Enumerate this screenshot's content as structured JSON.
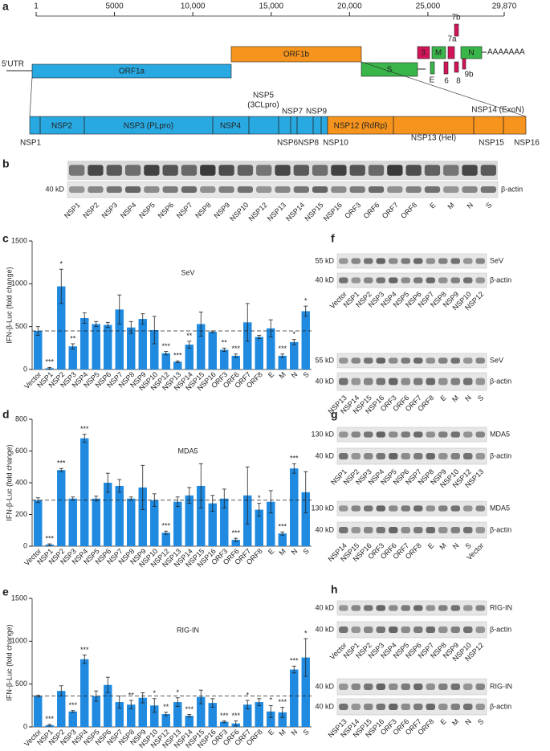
{
  "panel_labels": {
    "a": "a",
    "b": "b",
    "c": "c",
    "d": "d",
    "e": "e",
    "f": "f",
    "g": "g",
    "h": "h"
  },
  "genome": {
    "range": [
      1,
      29870
    ],
    "ticks": [
      1,
      5000,
      {
        "value": 10000,
        "label": "10,000"
      },
      {
        "value": 15000,
        "label": "15,000"
      },
      {
        "value": 20000,
        "label": "20,000"
      },
      {
        "value": 25000,
        "label": "25,000"
      },
      {
        "value": 29870,
        "label": "29,870"
      }
    ],
    "labels": {
      "utr": "5′UTR",
      "orf1a": "ORF1a",
      "orf1b": "ORF1b",
      "s": "S",
      "orf3": "3",
      "m": "M",
      "n": "N",
      "e": "E",
      "orf6": "6",
      "orf7a": "7a",
      "orf7b": "7b",
      "orf8": "8",
      "orf9b": "9b",
      "polya": "AAAAAAA"
    },
    "nsps": {
      "nsp1": "NSP1",
      "nsp2": "NSP2",
      "nsp3": "NSP3 (PLpro)",
      "nsp4": "NSP4",
      "nsp5": "NSP5",
      "nsp5_note": "(3CLpro)",
      "nsp6": "NSP6",
      "nsp7": "NSP7",
      "nsp8": "NSP8",
      "nsp9": "NSP9",
      "nsp10": "NSP10",
      "nsp12": "NSP12 (RdRp)",
      "nsp13": "NSP13 (Hel)",
      "nsp14": "NSP14 (ExoN)",
      "nsp15": "NSP15",
      "nsp16": "NSP16"
    }
  },
  "blots": {
    "b": {
      "rows": [
        {
          "size": "40 kD",
          "target": "β-actin"
        }
      ],
      "lanes": [
        "NSP1",
        "NSP2",
        "NSP3",
        "NSP4",
        "NSP5",
        "NSP6",
        "NSP7",
        "NSP8",
        "NSP9",
        "NSP10",
        "NSP12",
        "NSP13",
        "NSP14",
        "NSP15",
        "NSP16",
        "ORF3",
        "ORF6",
        "ORF7",
        "ORF8",
        "E",
        "M",
        "N",
        "S"
      ]
    },
    "f1": {
      "rows": [
        {
          "size": "55 kD",
          "target": "SeV"
        },
        {
          "size": "40 kD",
          "target": "β-actin"
        }
      ],
      "lanes": [
        "Vector",
        "NSP1",
        "NSP2",
        "NSP3",
        "NSP4",
        "NSP5",
        "NSP6",
        "NSP7",
        "NSP8",
        "NSP9",
        "NSP10",
        "NSP12"
      ]
    },
    "f2": {
      "rows": [
        {
          "size": "55 kD",
          "target": "SeV"
        },
        {
          "size": "40 kD",
          "target": "β-actin"
        }
      ],
      "lanes": [
        "NSP13",
        "NSP14",
        "NSP15",
        "NSP16",
        "ORF3",
        "ORF6",
        "ORF7",
        "ORF8",
        "E",
        "M",
        "N",
        "S"
      ]
    },
    "g1": {
      "rows": [
        {
          "size": "130 kD",
          "target": "MDA5"
        },
        {
          "size": "40 kD",
          "target": "β-actin"
        }
      ],
      "lanes": [
        "NSP1",
        "NSP2",
        "NSP3",
        "NSP4",
        "NSP5",
        "NSP6",
        "NSP7",
        "NSP8",
        "NSP9",
        "NSP10",
        "NSP12",
        "NSP13"
      ]
    },
    "g2": {
      "rows": [
        {
          "size": "130 kD",
          "target": "MDA5"
        },
        {
          "size": "40 kD",
          "target": "β-actin"
        }
      ],
      "lanes": [
        "NSP14",
        "NSP15",
        "NSP16",
        "ORF3",
        "ORF6",
        "ORF7",
        "ORF8",
        "E",
        "M",
        "N",
        "S",
        "Vector"
      ]
    },
    "h1": {
      "rows": [
        {
          "size": "40 kD",
          "target": "RIG-IN"
        },
        {
          "size": "40 kD",
          "target": "β-actin"
        }
      ],
      "lanes": [
        "Vector",
        "NSP1",
        "NSP2",
        "NSP3",
        "NSP4",
        "NSP5",
        "NSP6",
        "NSP7",
        "NSP8",
        "NSP9",
        "NSP10",
        "NSP12"
      ]
    },
    "h2": {
      "rows": [
        {
          "size": "40 kD",
          "target": "RIG-IN"
        },
        {
          "size": "40 kD",
          "target": "β-actin"
        }
      ],
      "lanes": [
        "NSP13",
        "NSP14",
        "NSP15",
        "NSP16",
        "ORF3",
        "ORF6",
        "ORF7",
        "ORF8",
        "E",
        "M",
        "N",
        "S"
      ]
    }
  },
  "chart_data": [
    {
      "type": "bar",
      "title": "SeV",
      "y_label": "IFN-β-Luc (fold change)",
      "color": "#1f8ae0",
      "reference_line": true,
      "categories": [
        "Vector",
        "NSP1",
        "NSP2",
        "NSP3",
        "NSP4",
        "NSP5",
        "NSP6",
        "NSP7",
        "NSP8",
        "NSP9",
        "NSP10",
        "NSP12",
        "NSP13",
        "NSP14",
        "NSP15",
        "NSP16",
        "ORF3",
        "ORF6",
        "ORF7",
        "ORF8",
        "E",
        "M",
        "N",
        "S"
      ],
      "values": [
        450,
        15,
        970,
        270,
        600,
        530,
        520,
        700,
        490,
        590,
        460,
        190,
        90,
        290,
        530,
        440,
        230,
        160,
        550,
        380,
        480,
        160,
        320,
        680
      ],
      "errors": [
        50,
        10,
        200,
        30,
        60,
        30,
        30,
        170,
        70,
        60,
        160,
        20,
        10,
        40,
        140,
        10,
        20,
        20,
        220,
        20,
        100,
        20,
        30,
        60
      ],
      "significance": [
        null,
        "***",
        "*",
        "**",
        null,
        null,
        null,
        null,
        null,
        null,
        null,
        "***",
        "***",
        "**",
        null,
        null,
        "**",
        "***",
        null,
        null,
        null,
        "***",
        "*",
        "*"
      ],
      "ylim": [
        0,
        1500
      ],
      "yticks": [
        0,
        500,
        1000,
        1500
      ]
    },
    {
      "type": "bar",
      "title": "MDA5",
      "y_label": "IFN-β-Luc (fold change)",
      "color": "#1f8ae0",
      "reference_line": true,
      "categories": [
        "Vector",
        "NSP1",
        "NSP2",
        "NSP3",
        "NSP4",
        "NSP5",
        "NSP6",
        "NSP7",
        "NSP8",
        "NSP9",
        "NSP10",
        "NSP12",
        "NSP13",
        "NSP14",
        "NSP15",
        "NSP16",
        "ORF3",
        "ORF6",
        "ORF7",
        "ORF8",
        "E",
        "M",
        "N",
        "S"
      ],
      "values": [
        290,
        10,
        480,
        300,
        680,
        300,
        400,
        380,
        300,
        370,
        290,
        85,
        280,
        320,
        380,
        270,
        300,
        40,
        320,
        230,
        280,
        80,
        490,
        340
      ],
      "errors": [
        15,
        5,
        10,
        10,
        25,
        15,
        60,
        40,
        10,
        140,
        40,
        10,
        30,
        50,
        140,
        50,
        60,
        10,
        180,
        40,
        70,
        10,
        30,
        130
      ],
      "significance": [
        null,
        "***",
        "***",
        null,
        "***",
        null,
        null,
        null,
        null,
        null,
        null,
        "***",
        null,
        null,
        null,
        null,
        null,
        "***",
        null,
        "*",
        null,
        "***",
        "***",
        null
      ],
      "ylim": [
        0,
        800
      ],
      "yticks": [
        0,
        200,
        400,
        600,
        800
      ]
    },
    {
      "type": "bar",
      "title": "RIG-IN",
      "y_label": "IFN-β-Luc (fold change)",
      "color": "#1f8ae0",
      "reference_line": true,
      "categories": [
        "Vector",
        "NSP1",
        "NSP2",
        "NSP3",
        "NSP4",
        "NSP5",
        "NSP6",
        "NSP7",
        "NSP8",
        "NSP9",
        "NSP10",
        "NSP12",
        "NSP13",
        "NSP14",
        "NSP15",
        "NSP16",
        "ORF3",
        "ORF6",
        "ORF7",
        "ORF8",
        "E",
        "M",
        "N",
        "S"
      ],
      "values": [
        360,
        20,
        420,
        180,
        790,
        360,
        490,
        290,
        260,
        340,
        250,
        150,
        290,
        130,
        350,
        280,
        60,
        40,
        260,
        290,
        180,
        170,
        670,
        810
      ],
      "errors": [
        10,
        10,
        60,
        10,
        50,
        60,
        90,
        70,
        50,
        60,
        80,
        20,
        50,
        15,
        80,
        50,
        10,
        30,
        50,
        40,
        70,
        60,
        40,
        220
      ],
      "significance": [
        null,
        "***",
        null,
        "***",
        "***",
        null,
        null,
        null,
        "**",
        null,
        "*",
        "**",
        "*",
        "***",
        null,
        null,
        "***",
        "***",
        "*",
        null,
        "*",
        "***",
        "***",
        "*"
      ],
      "ylim": [
        0,
        1500
      ],
      "yticks": [
        0,
        500,
        1000,
        1500
      ]
    }
  ]
}
